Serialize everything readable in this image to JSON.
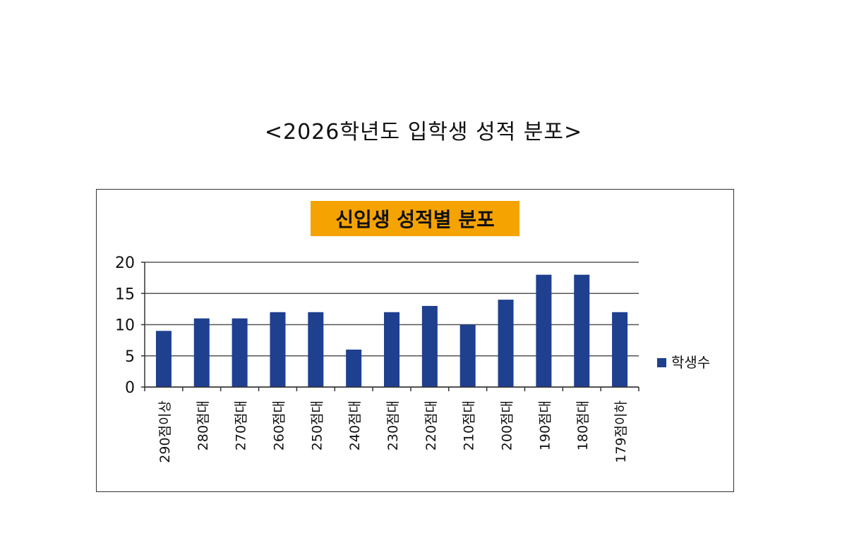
{
  "document_title": "<2026학년도 입학생 성적 분포>",
  "chart_data": {
    "type": "bar",
    "title": "신입생 성적별 분포",
    "categories": [
      "290점이상",
      "280점대",
      "270점대",
      "260점대",
      "250점대",
      "240점대",
      "230점대",
      "220점대",
      "210점대",
      "200점대",
      "190점대",
      "180점대",
      "179점이하"
    ],
    "series": [
      {
        "name": "학생수",
        "values": [
          9,
          11,
          11,
          12,
          12,
          6,
          12,
          13,
          10,
          14,
          18,
          18,
          12
        ],
        "color": "#1f3f8f"
      }
    ],
    "xlabel": "",
    "ylabel": "",
    "ylim": [
      0,
      20
    ],
    "yticks": [
      0,
      5,
      10,
      15,
      20
    ],
    "grid": true,
    "legend": "right",
    "title_background": "#f5a300"
  }
}
